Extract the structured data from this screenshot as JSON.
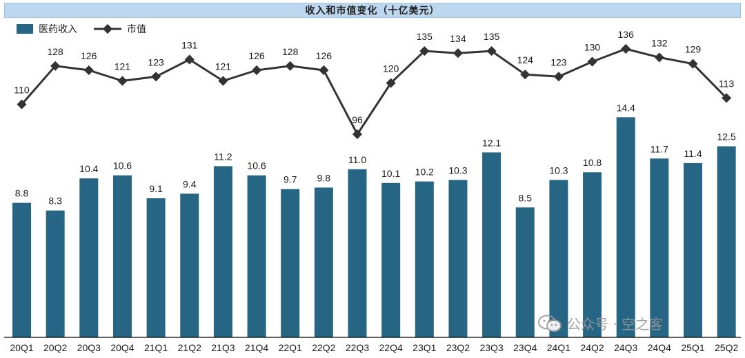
{
  "chart_data": {
    "type": "bar",
    "title": "收入和市值变化（十亿美元）",
    "categories": [
      "20Q1",
      "20Q2",
      "20Q3",
      "20Q4",
      "21Q1",
      "21Q2",
      "21Q3",
      "21Q4",
      "22Q1",
      "22Q2",
      "22Q3",
      "22Q4",
      "23Q1",
      "23Q2",
      "23Q3",
      "23Q4",
      "24Q1",
      "24Q2",
      "24Q3",
      "24Q4",
      "25Q1",
      "25Q2"
    ],
    "series": [
      {
        "name": "医药收入",
        "type": "bar",
        "values": [
          8.8,
          8.3,
          10.4,
          10.6,
          9.1,
          9.4,
          11.2,
          10.6,
          9.7,
          9.8,
          11.0,
          10.1,
          10.2,
          10.3,
          12.1,
          8.5,
          10.3,
          10.8,
          14.4,
          11.7,
          11.4,
          12.5
        ],
        "labels": [
          "8.8",
          "8.3",
          "10.4",
          "10.6",
          "9.1",
          "9.4",
          "11.2",
          "10.6",
          "9.7",
          "9.8",
          "11.0",
          "10.1",
          "10.2",
          "10.3",
          "12.1",
          "8.5",
          "10.3",
          "10.8",
          "14.4",
          "11.7",
          "11.4",
          "12.5"
        ],
        "color": "#266584"
      },
      {
        "name": "市值",
        "type": "line",
        "values": [
          110,
          128,
          126,
          121,
          123,
          131,
          121,
          126,
          128,
          126,
          96,
          120,
          135,
          134,
          135,
          124,
          123,
          130,
          136,
          132,
          129,
          113
        ],
        "color": "#333333"
      }
    ],
    "bar_axis_range": [
      0,
      15.3
    ],
    "line_axis_range": [
      56,
      144
    ],
    "legend_position": "top-left",
    "grid": false
  },
  "watermark": {
    "text": "公众号 · 空之客",
    "icon": "wechat-icon"
  }
}
